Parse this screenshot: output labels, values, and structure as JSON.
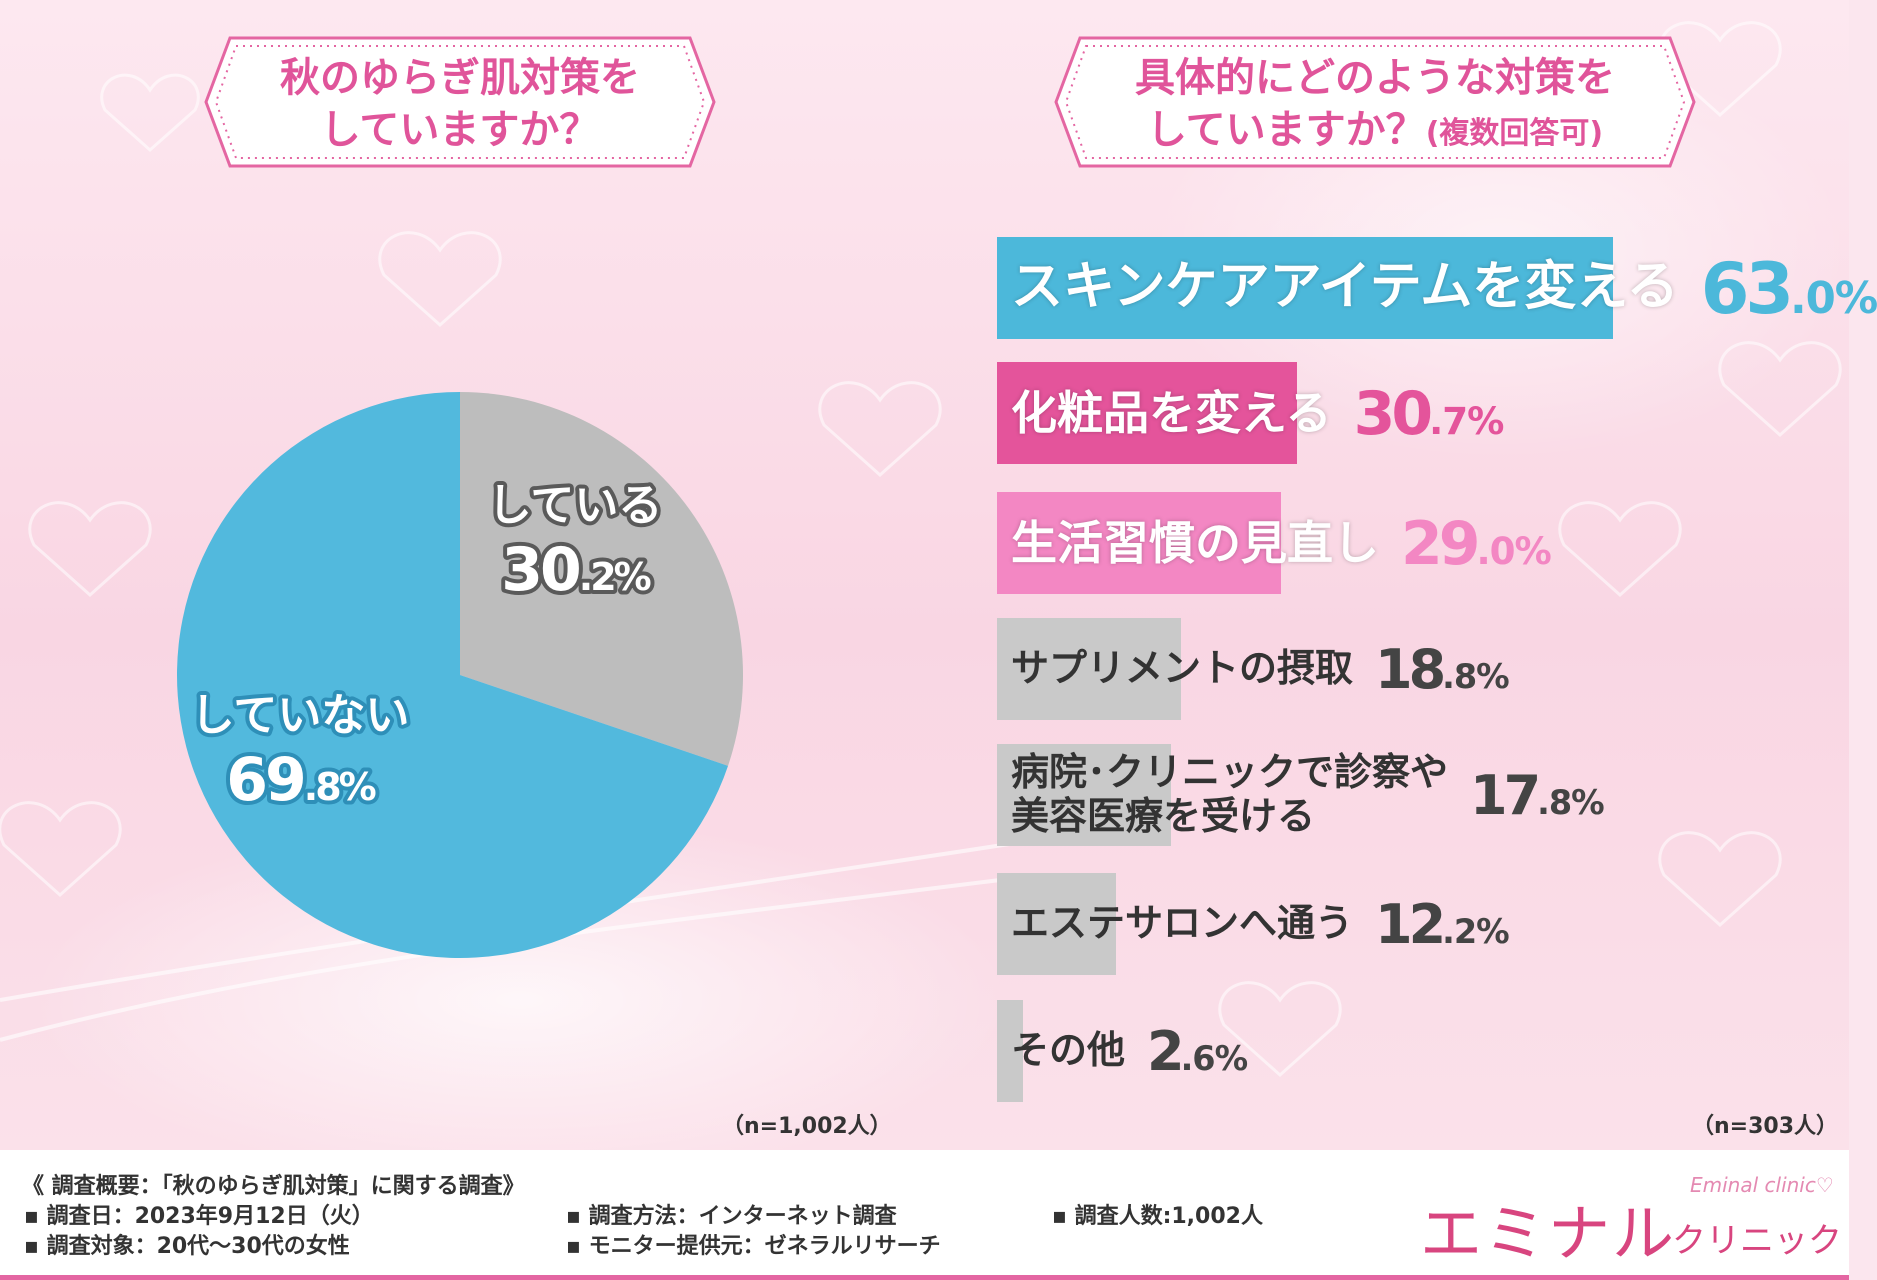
{
  "left_panel": {
    "title_line1": "秋のゆらぎ肌対策を",
    "title_line2": "していますか？",
    "sample_note": "（n=1,002人）"
  },
  "right_panel": {
    "title_line1": "具体的にどのような対策を",
    "title_line2_main": "していますか？",
    "title_line2_small": "(複数回答可)",
    "sample_note": "（n=303人）"
  },
  "chart_data": [
    {
      "type": "pie",
      "title": "秋のゆらぎ肌対策をしていますか？",
      "slices": [
        {
          "label": "している",
          "value": 30.2,
          "int": "30",
          "dec": ".2%",
          "color": "#bdbdbd"
        },
        {
          "label": "していない",
          "value": 69.8,
          "int": "69",
          "dec": ".8%",
          "color": "#52b9dd"
        }
      ],
      "n": "n=1,002人"
    },
    {
      "type": "bar",
      "title": "具体的にどのような対策をしていますか？(複数回答可)",
      "categories": [
        "スキンケアアイテムを変える",
        "化粧品を変える",
        "生活習慣の見直し",
        "サプリメントの摂取",
        "病院・クリニックで診察や美容医療を受ける",
        "エステサロンへ通う",
        "その他"
      ],
      "label_lines": [
        [
          "スキンケアアイテムを変える"
        ],
        [
          "化粧品を変える"
        ],
        [
          "生活習慣の見直し"
        ],
        [
          "サプリメントの摂取"
        ],
        [
          "病院･クリニックで診察や",
          "美容医療を受ける"
        ],
        [
          "エステサロンへ通う"
        ],
        [
          "その他"
        ]
      ],
      "values": [
        63.0,
        30.7,
        29.0,
        18.8,
        17.8,
        12.2,
        2.6
      ],
      "value_int": [
        "63",
        "30",
        "29",
        "18",
        "17",
        "12",
        "2"
      ],
      "value_dec": [
        ".0%",
        ".7%",
        ".0%",
        ".8%",
        ".8%",
        ".2%",
        ".6%"
      ],
      "colors": [
        "#4cb8da",
        "#e4549b",
        "#f387c3",
        "#c9c9c9",
        "#c9c9c9",
        "#c9c9c9",
        "#c9c9c9"
      ],
      "label_colors": [
        "#ffffff",
        "#ffffff",
        "#ffffff",
        "#333333",
        "#333333",
        "#333333",
        "#333333"
      ],
      "value_colors": [
        "#4cb8da",
        "#e4549b",
        "#f387c3",
        "#444444",
        "#444444",
        "#444444",
        "#444444"
      ],
      "n": "n=303人"
    }
  ],
  "footer": {
    "summary": "《 調査概要：「秋のゆらぎ肌対策」に関する調査》",
    "date": "▪ 調査日：2023年9月12日（火）",
    "target": "▪ 調査対象：20代〜30代の女性",
    "method": "▪ 調査方法：インターネット調査",
    "provider": "▪ モニター提供元：ゼネラルリサーチ",
    "count": "▪ 調査人数:1,002人",
    "logo_main": "エミナル",
    "logo_sub": "Eminal clinic♡",
    "logo_kana": "クリニック"
  }
}
